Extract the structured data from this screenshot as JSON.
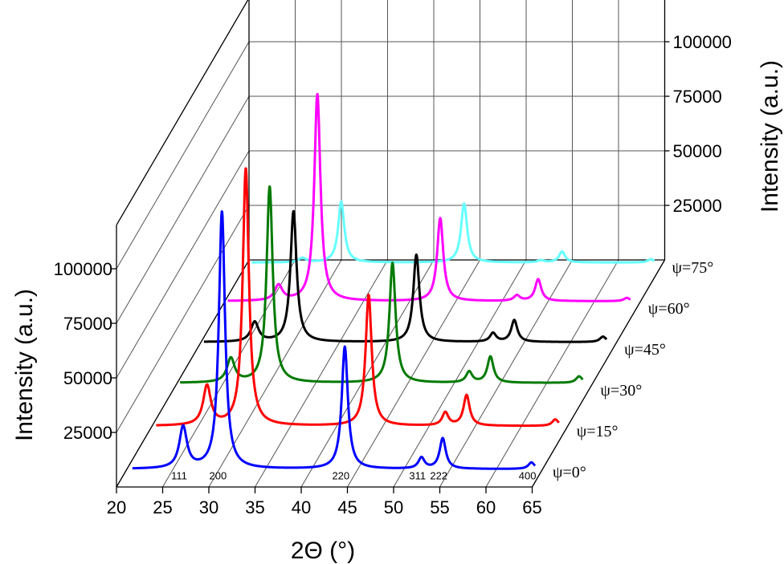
{
  "chart_data": {
    "type": "line",
    "subtype": "3d-waterfall",
    "xlabel": "2Θ (°)",
    "ylabel_front": "Intensity (a.u.)",
    "ylabel_back": "Intensity (a.u.)",
    "xlim": [
      20,
      65
    ],
    "x_ticks": [
      "20",
      "25",
      "30",
      "35",
      "40",
      "45",
      "50",
      "55",
      "60",
      "65"
    ],
    "y_ticks_front": [
      "25000",
      "50000",
      "75000",
      "100000"
    ],
    "y_ticks_back": [
      "25000",
      "50000",
      "75000",
      "100000"
    ],
    "ylim": [
      0,
      120000
    ],
    "peak_positions": [
      26.5,
      30.7,
      44.0,
      52.3,
      54.6,
      64.2
    ],
    "peak_widths": [
      0.5,
      0.4,
      0.4,
      0.4,
      0.4,
      0.4
    ],
    "peak_labels": [
      {
        "hkl": "111",
        "x": 26.5
      },
      {
        "hkl": "200",
        "x": 30.7
      },
      {
        "hkl": "220",
        "x": 44.0
      },
      {
        "hkl": "311",
        "x": 52.3
      },
      {
        "hkl": "222",
        "x": 54.6
      },
      {
        "hkl": "400",
        "x": 64.2
      }
    ],
    "series": [
      {
        "name": "ψ=75°",
        "color": "#66ffff",
        "baseline": 4000,
        "peak_heights": [
          2000,
          28000,
          27000,
          1000,
          5000,
          1500
        ]
      },
      {
        "name": "ψ=60°",
        "color": "#ff00ff",
        "baseline": 5000,
        "peak_heights": [
          7000,
          95000,
          38000,
          2500,
          10000,
          1500
        ]
      },
      {
        "name": "ψ=45°",
        "color": "#000000",
        "baseline": 5000,
        "peak_heights": [
          9000,
          60000,
          40000,
          4000,
          10000,
          2500
        ]
      },
      {
        "name": "ψ=30°",
        "color": "#007a00",
        "baseline": 5000,
        "peak_heights": [
          11000,
          90000,
          55000,
          5000,
          12000,
          3000
        ]
      },
      {
        "name": "ψ=15°",
        "color": "#ff0000",
        "baseline": 4000,
        "peak_heights": [
          18000,
          118000,
          60000,
          6000,
          14000,
          3000
        ]
      },
      {
        "name": "ψ=0°",
        "color": "#0000ff",
        "baseline": 3000,
        "peak_heights": [
          19000,
          118000,
          56000,
          5000,
          14000,
          3000
        ]
      }
    ]
  }
}
